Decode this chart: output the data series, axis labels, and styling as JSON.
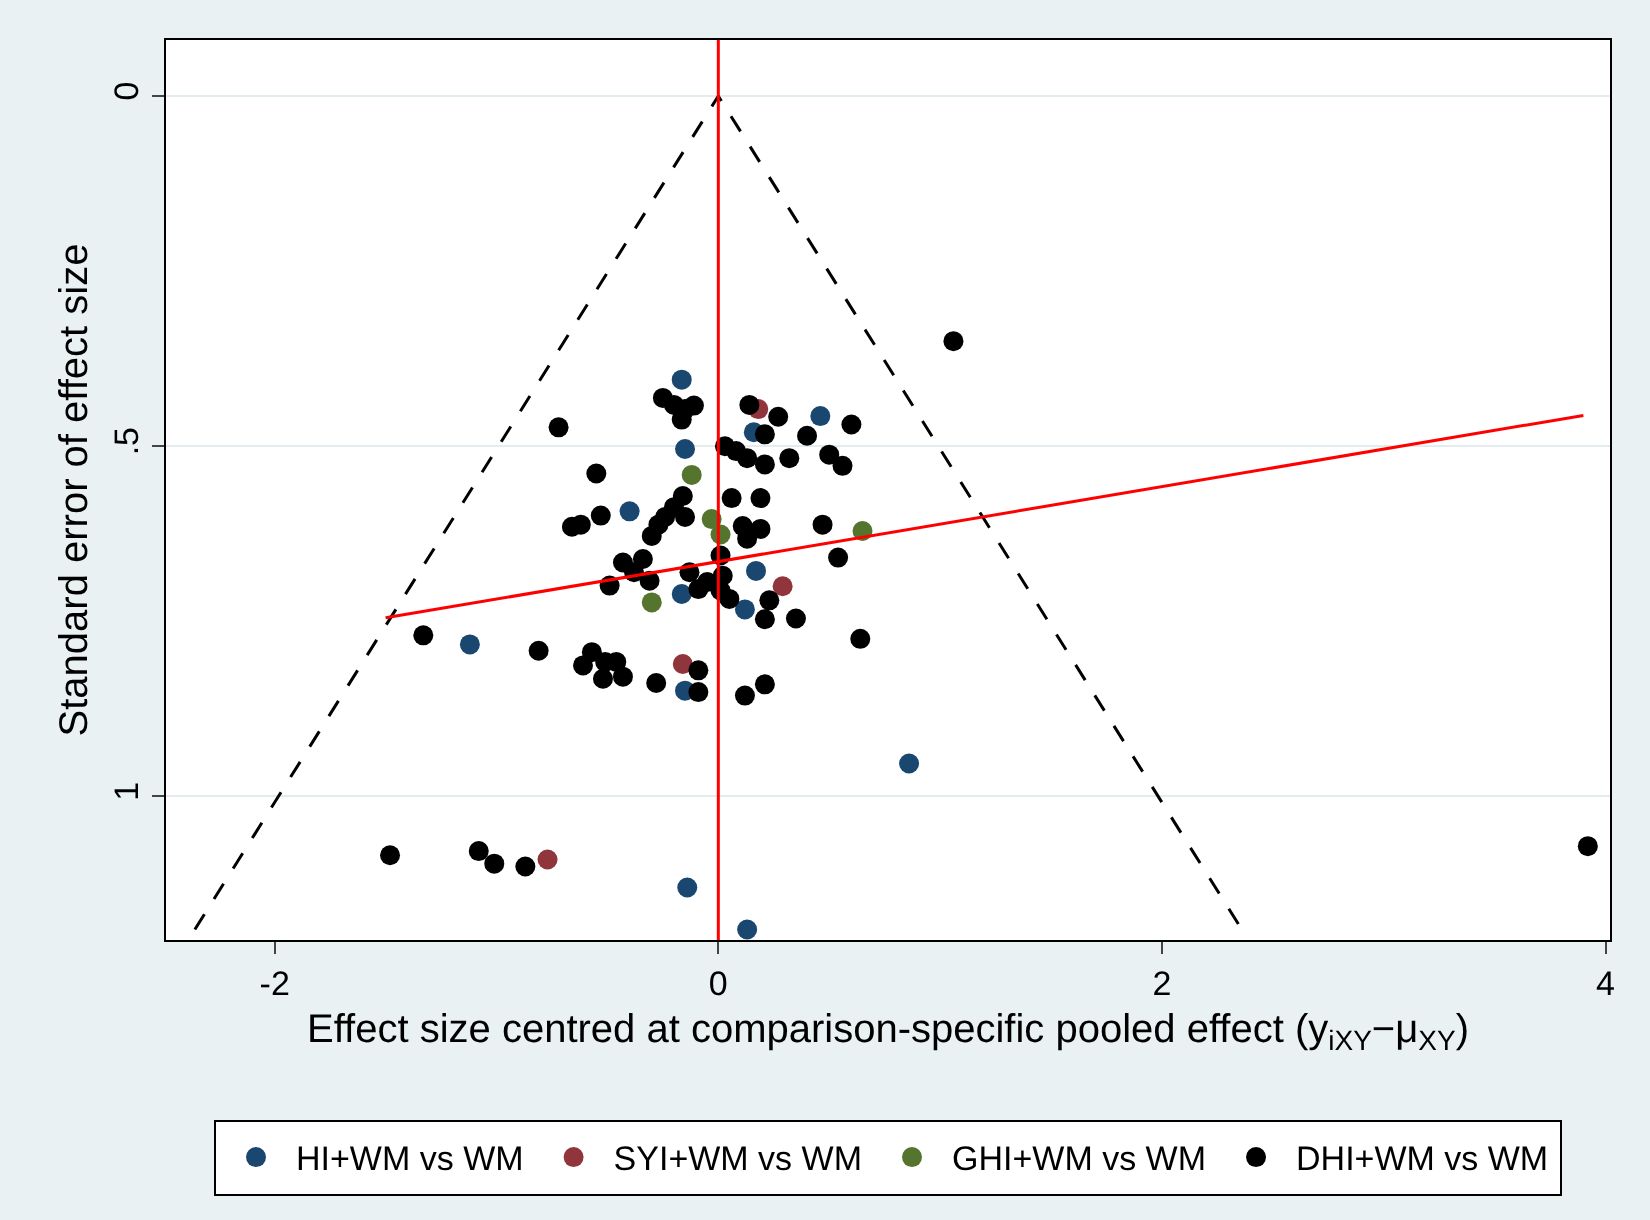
{
  "chart_data": {
    "type": "scatter",
    "xlabel": "Effect size centred at comparison-specific pooled effect (y$_{iXY}$−μ$_{XY}$)",
    "ylabel": "Standard error of effect size",
    "xlim": [
      -2.49,
      4.02
    ],
    "xticks": [
      -2,
      0,
      2,
      4
    ],
    "ylim": [
      1.205,
      -0.08
    ],
    "yticks": [
      0,
      {
        "value": 0.5,
        "label": ".5"
      },
      1
    ],
    "grid": "y",
    "legend": "bottom",
    "marker": "circle",
    "ref_lines": [
      {
        "axis": "x",
        "value": 0,
        "color": "#ff0000",
        "line_style": "solid"
      }
    ],
    "series": [
      {
        "name": "HI+WM vs WM",
        "color": "#1a476f",
        "x": [
          0.13,
          0.86,
          -0.14,
          -0.165,
          -0.15,
          0.16,
          -0.4,
          -0.165,
          0.17,
          0.12,
          -1.12,
          -0.15,
          0.46
        ],
        "values": [
          1.19,
          0.953,
          1.13,
          0.405,
          0.504,
          0.48,
          0.593,
          0.711,
          0.678,
          0.733,
          0.783,
          0.849,
          0.457
        ]
      },
      {
        "name": "SYI+WM vs WM",
        "color": "#90353b",
        "x": [
          -0.77,
          0.18,
          0.29,
          -0.16
        ],
        "values": [
          1.09,
          0.447,
          0.7,
          0.811
        ]
      },
      {
        "name": "GHI+WM vs WM",
        "color": "#55752f",
        "x": [
          -0.12,
          -0.03,
          0.01,
          -0.3,
          0.65
        ],
        "values": [
          0.541,
          0.604,
          0.626,
          0.723,
          0.621
        ]
      },
      {
        "name": "DHI+WM vs WM",
        "color": "#000000",
        "x": [
          -1.48,
          -1.08,
          -1.01,
          -0.87,
          3.92,
          -0.25,
          -0.2,
          -0.15,
          -0.11,
          -0.165,
          -0.72,
          0.03,
          0.08,
          0.13,
          0.14,
          0.27,
          0.21,
          0.32,
          0.21,
          -0.55,
          -0.16,
          0.06,
          0.19,
          -0.53,
          -0.2,
          -0.24,
          -0.15,
          -0.66,
          -0.62,
          -0.3,
          -0.27,
          0.11,
          0.19,
          0.13,
          0.01,
          -0.43,
          -0.34,
          -0.38,
          -0.49,
          -0.31,
          -0.13,
          -0.09,
          -0.05,
          0.02,
          0.01,
          0.05,
          0.23,
          0.21,
          -1.33,
          -0.81,
          -0.61,
          -0.57,
          -0.51,
          -0.46,
          -0.43,
          -0.52,
          -0.28,
          -0.09,
          -0.09,
          0.12,
          0.21,
          1.06,
          0.6,
          0.4,
          0.5,
          0.56,
          0.47,
          0.54,
          0.35,
          0.64
        ],
        "values": [
          1.084,
          1.078,
          1.096,
          1.1,
          1.071,
          0.431,
          0.441,
          0.447,
          0.442,
          0.462,
          0.473,
          0.5,
          0.507,
          0.517,
          0.441,
          0.458,
          0.483,
          0.517,
          0.526,
          0.539,
          0.571,
          0.574,
          0.574,
          0.599,
          0.587,
          0.601,
          0.601,
          0.615,
          0.612,
          0.628,
          0.612,
          0.614,
          0.618,
          0.632,
          0.656,
          0.666,
          0.661,
          0.68,
          0.699,
          0.692,
          0.68,
          0.704,
          0.694,
          0.685,
          0.706,
          0.718,
          0.72,
          0.747,
          0.77,
          0.792,
          0.813,
          0.794,
          0.808,
          0.808,
          0.829,
          0.832,
          0.838,
          0.82,
          0.851,
          0.856,
          0.84,
          0.35,
          0.469,
          0.485,
          0.512,
          0.528,
          0.612,
          0.659,
          0.746,
          0.775
        ]
      },
      {
        "type": "line",
        "color": "#000000",
        "line_style": "dashed",
        "marker": "none",
        "x": [
          -2.36,
          0,
          2.36
        ],
        "values": [
          1.19,
          0,
          1.19
        ]
      },
      {
        "type": "line",
        "color": "#ff0000",
        "line_style": "solid",
        "marker": "none",
        "x": [
          -1.5,
          3.9
        ],
        "values": [
          0.745,
          0.456
        ]
      }
    ]
  }
}
